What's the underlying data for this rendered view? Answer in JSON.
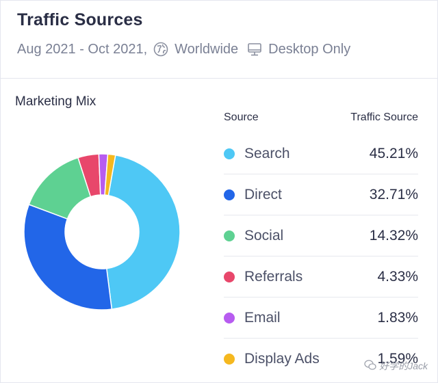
{
  "header": {
    "title": "Traffic Sources",
    "date_range": "Aug 2021 - Oct 2021,",
    "region_icon": "globe-icon",
    "region": "Worldwide",
    "device_icon": "desktop-icon",
    "device": "Desktop Only"
  },
  "section": {
    "title": "Marketing Mix"
  },
  "table": {
    "col_source": "Source",
    "col_share": "Traffic Source",
    "rows": [
      {
        "name": "Search",
        "value": "45.21%",
        "color": "#4ec8f5"
      },
      {
        "name": "Direct",
        "value": "32.71%",
        "color": "#2266e8"
      },
      {
        "name": "Social",
        "value": "14.32%",
        "color": "#5ed192"
      },
      {
        "name": "Referrals",
        "value": "4.33%",
        "color": "#e8476b"
      },
      {
        "name": "Email",
        "value": "1.83%",
        "color": "#b75cf0"
      },
      {
        "name": "Display Ads",
        "value": "1.59%",
        "color": "#f5b81f"
      }
    ]
  },
  "chart_data": {
    "type": "pie",
    "categories": [
      "Search",
      "Direct",
      "Social",
      "Referrals",
      "Email",
      "Display Ads"
    ],
    "values": [
      45.21,
      32.71,
      14.32,
      4.33,
      1.83,
      1.59
    ],
    "colors": [
      "#4ec8f5",
      "#2266e8",
      "#5ed192",
      "#e8476b",
      "#b75cf0",
      "#f5b81f"
    ],
    "donut": true
  },
  "watermark": {
    "text": "好学的Jack"
  }
}
